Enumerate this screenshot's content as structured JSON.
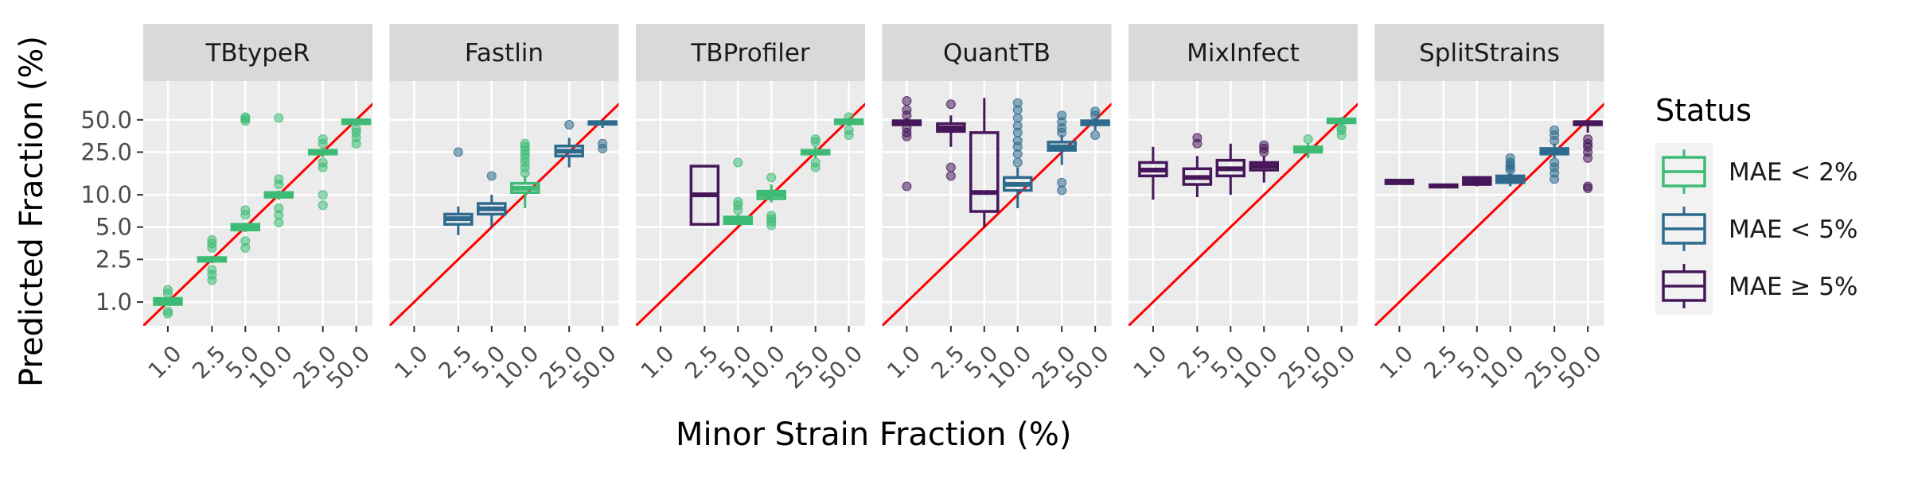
{
  "chart_data": {
    "type": "boxplot",
    "facet_type": "faceted boxplot",
    "x_label": "Minor Strain Fraction (%)",
    "y_label": "Predicted Fraction (%)",
    "x_scale": "log10",
    "y_scale": "log10",
    "x_ticks": [
      1.0,
      2.5,
      5.0,
      10.0,
      25.0,
      50.0
    ],
    "x_tick_labels": [
      "1.0",
      "2.5",
      "5.0",
      "10.0",
      "25.0",
      "50.0"
    ],
    "y_ticks": [
      1.0,
      2.5,
      5.0,
      10.0,
      25.0,
      50.0
    ],
    "y_tick_labels": [
      "1.0",
      "2.5",
      "5.0",
      "10.0",
      "25.0",
      "50.0"
    ],
    "ylim": [
      0.6,
      115
    ],
    "xlim": [
      0.6,
      70
    ],
    "reference_line": "y = x",
    "reference_line_color": "#ff0000",
    "panel_background": "#ebebeb",
    "strip_background": "#d9d9d9",
    "grid": true,
    "legend": {
      "title": "Status",
      "position": "right",
      "items": [
        {
          "label": "MAE < 2%",
          "color": "#3dbb74"
        },
        {
          "label": "MAE < 5%",
          "color": "#2e6a8e"
        },
        {
          "label": "MAE ≥ 5%",
          "color": "#45175a"
        }
      ]
    },
    "facets": [
      {
        "tool": "TBtypeR",
        "boxes": [
          {
            "x": 1.0,
            "q1": 0.95,
            "median": 1.02,
            "q3": 1.08,
            "lo": 0.95,
            "hi": 1.1,
            "outliers": [
              0.78,
              0.82,
              1.2,
              1.3
            ],
            "status": "MAE < 2%"
          },
          {
            "x": 2.5,
            "q1": 2.4,
            "median": 2.5,
            "q3": 2.6,
            "lo": 2.3,
            "hi": 2.7,
            "outliers": [
              1.6,
              1.8,
              2.0,
              3.2,
              3.5,
              3.8
            ],
            "status": "MAE < 2%"
          },
          {
            "x": 5.0,
            "q1": 4.7,
            "median": 5.0,
            "q3": 5.3,
            "lo": 4.5,
            "hi": 5.5,
            "outliers": [
              3.2,
              3.7,
              6.5,
              7.2,
              49,
              51,
              53
            ],
            "status": "MAE < 2%"
          },
          {
            "x": 10.0,
            "q1": 9.5,
            "median": 10.0,
            "q3": 10.5,
            "lo": 9.0,
            "hi": 11.0,
            "outliers": [
              5.5,
              6.5,
              7.5,
              12.5,
              14,
              52
            ],
            "status": "MAE < 2%"
          },
          {
            "x": 25.0,
            "q1": 24,
            "median": 25,
            "q3": 26,
            "lo": 22.5,
            "hi": 27.5,
            "outliers": [
              8,
              10,
              18,
              20,
              30,
              33
            ],
            "status": "MAE < 2%"
          },
          {
            "x": 50.0,
            "q1": 46,
            "median": 48,
            "q3": 50,
            "lo": 44,
            "hi": 51,
            "outliers": [
              30,
              34,
              38,
              41
            ],
            "status": "MAE < 2%"
          }
        ]
      },
      {
        "tool": "Fastlin",
        "boxes": [
          {
            "x": 2.5,
            "q1": 5.3,
            "median": 6.0,
            "q3": 6.6,
            "lo": 4.2,
            "hi": 7.8,
            "outliers": [
              25
            ],
            "status": "MAE < 5%"
          },
          {
            "x": 5.0,
            "q1": 6.6,
            "median": 7.4,
            "q3": 8.3,
            "lo": 5.0,
            "hi": 10.0,
            "outliers": [
              15
            ],
            "status": "MAE < 5%"
          },
          {
            "x": 10.0,
            "q1": 10.5,
            "median": 11.5,
            "q3": 12.8,
            "lo": 7.5,
            "hi": 15,
            "outliers": [
              16,
              18,
              20,
              22,
              24,
              26,
              28,
              30
            ],
            "status": "MAE < 2%"
          },
          {
            "x": 25.0,
            "q1": 23,
            "median": 25.5,
            "q3": 28.5,
            "lo": 18,
            "hi": 34,
            "outliers": [
              45
            ],
            "status": "MAE < 5%"
          },
          {
            "x": 50.0,
            "q1": 45.5,
            "median": 47,
            "q3": 48,
            "lo": 42,
            "hi": 49,
            "outliers": [
              27,
              30
            ],
            "status": "MAE < 5%"
          }
        ]
      },
      {
        "tool": "TBProfiler",
        "boxes": [
          {
            "x": 2.5,
            "q1": 5.3,
            "median": 10.0,
            "q3": 18.5,
            "lo": 5.3,
            "hi": 18.5,
            "outliers": [],
            "status": "MAE ≥ 5%"
          },
          {
            "x": 5.0,
            "q1": 5.4,
            "median": 5.8,
            "q3": 6.2,
            "lo": 5.2,
            "hi": 6.6,
            "outliers": [
              7.2,
              8.0,
              8.6,
              20
            ],
            "status": "MAE < 2%"
          },
          {
            "x": 10.0,
            "q1": 9.2,
            "median": 10.0,
            "q3": 10.8,
            "lo": 8.5,
            "hi": 12.5,
            "outliers": [
              5.2,
              5.6,
              6.0,
              6.4,
              14.5
            ],
            "status": "MAE < 2%"
          },
          {
            "x": 25.0,
            "q1": 24,
            "median": 25,
            "q3": 26,
            "lo": 22,
            "hi": 28,
            "outliers": [
              18,
              20,
              31,
              33
            ],
            "status": "MAE < 2%"
          },
          {
            "x": 50.0,
            "q1": 46,
            "median": 48,
            "q3": 50,
            "lo": 44,
            "hi": 52,
            "outliers": [
              36,
              40,
              53
            ],
            "status": "MAE < 2%"
          }
        ]
      },
      {
        "tool": "QuantTB",
        "boxes": [
          {
            "x": 1.0,
            "q1": 45,
            "median": 47,
            "q3": 49,
            "lo": 44,
            "hi": 52,
            "outliers": [
              12,
              35,
              38,
              42,
              55,
              62,
              75
            ],
            "status": "MAE ≥ 5%"
          },
          {
            "x": 2.5,
            "q1": 39,
            "median": 42,
            "q3": 46,
            "lo": 28,
            "hi": 55,
            "outliers": [
              15,
              18,
              70
            ],
            "status": "MAE ≥ 5%"
          },
          {
            "x": 5.0,
            "q1": 7.0,
            "median": 10.5,
            "q3": 38,
            "lo": 5.0,
            "hi": 80,
            "outliers": [],
            "status": "MAE ≥ 5%"
          },
          {
            "x": 10.0,
            "q1": 11,
            "median": 12.5,
            "q3": 14.5,
            "lo": 7.5,
            "hi": 18,
            "outliers": [
              20,
              24,
              28,
              32,
              38,
              44,
              52,
              62,
              72
            ],
            "status": "MAE < 5%"
          },
          {
            "x": 25.0,
            "q1": 26,
            "median": 28,
            "q3": 31,
            "lo": 19,
            "hi": 36,
            "outliers": [
              11,
              13,
              38,
              42,
              48,
              55
            ],
            "status": "MAE < 5%"
          },
          {
            "x": 50.0,
            "q1": 45,
            "median": 47,
            "q3": 49,
            "lo": 40,
            "hi": 52,
            "outliers": [
              36,
              55,
              60
            ],
            "status": "MAE < 5%"
          }
        ]
      },
      {
        "tool": "MixInfect",
        "boxes": [
          {
            "x": 1.0,
            "q1": 15,
            "median": 17,
            "q3": 20,
            "lo": 9,
            "hi": 28,
            "outliers": [],
            "status": "MAE ≥ 5%"
          },
          {
            "x": 2.5,
            "q1": 12.5,
            "median": 14.5,
            "q3": 17.5,
            "lo": 9.5,
            "hi": 23,
            "outliers": [
              30,
              34
            ],
            "status": "MAE ≥ 5%"
          },
          {
            "x": 5.0,
            "q1": 15,
            "median": 17.5,
            "q3": 21,
            "lo": 10,
            "hi": 30,
            "outliers": [],
            "status": "MAE ≥ 5%"
          },
          {
            "x": 10.0,
            "q1": 17,
            "median": 18.5,
            "q3": 20,
            "lo": 13,
            "hi": 23,
            "outliers": [
              25,
              27,
              29
            ],
            "status": "MAE ≥ 5%"
          },
          {
            "x": 25.0,
            "q1": 25,
            "median": 26.5,
            "q3": 28,
            "lo": 22,
            "hi": 30,
            "outliers": [
              33
            ],
            "status": "MAE < 2%"
          },
          {
            "x": 50.0,
            "q1": 47,
            "median": 49,
            "q3": 51,
            "lo": 44,
            "hi": 53,
            "outliers": [
              36,
              40,
              42
            ],
            "status": "MAE < 2%"
          }
        ]
      },
      {
        "tool": "SplitStrains",
        "boxes": [
          {
            "x": 1.0,
            "q1": 12.7,
            "median": 13.2,
            "q3": 13.7,
            "lo": 12.5,
            "hi": 14.0,
            "outliers": [],
            "status": "MAE ≥ 5%"
          },
          {
            "x": 2.5,
            "q1": 11.8,
            "median": 12.1,
            "q3": 12.4,
            "lo": 11.6,
            "hi": 12.6,
            "outliers": [],
            "status": "MAE ≥ 5%"
          },
          {
            "x": 5.0,
            "q1": 12.5,
            "median": 13.5,
            "q3": 14.5,
            "lo": 12.0,
            "hi": 15.0,
            "outliers": [],
            "status": "MAE ≥ 5%"
          },
          {
            "x": 10.0,
            "q1": 13,
            "median": 14,
            "q3": 15,
            "lo": 12,
            "hi": 16,
            "outliers": [
              17,
              18,
              19,
              20,
              22
            ],
            "status": "MAE < 5%"
          },
          {
            "x": 25.0,
            "q1": 24,
            "median": 25.5,
            "q3": 27,
            "lo": 22,
            "hi": 30,
            "outliers": [
              14,
              16,
              18,
              20,
              32,
              36,
              40
            ],
            "status": "MAE < 5%"
          },
          {
            "x": 50.0,
            "q1": 45,
            "median": 47,
            "q3": 48,
            "lo": 38,
            "hi": 49,
            "outliers": [
              11.5,
              12,
              22,
              25,
              28,
              30,
              33
            ],
            "status": "MAE ≥ 5%"
          }
        ]
      }
    ]
  }
}
